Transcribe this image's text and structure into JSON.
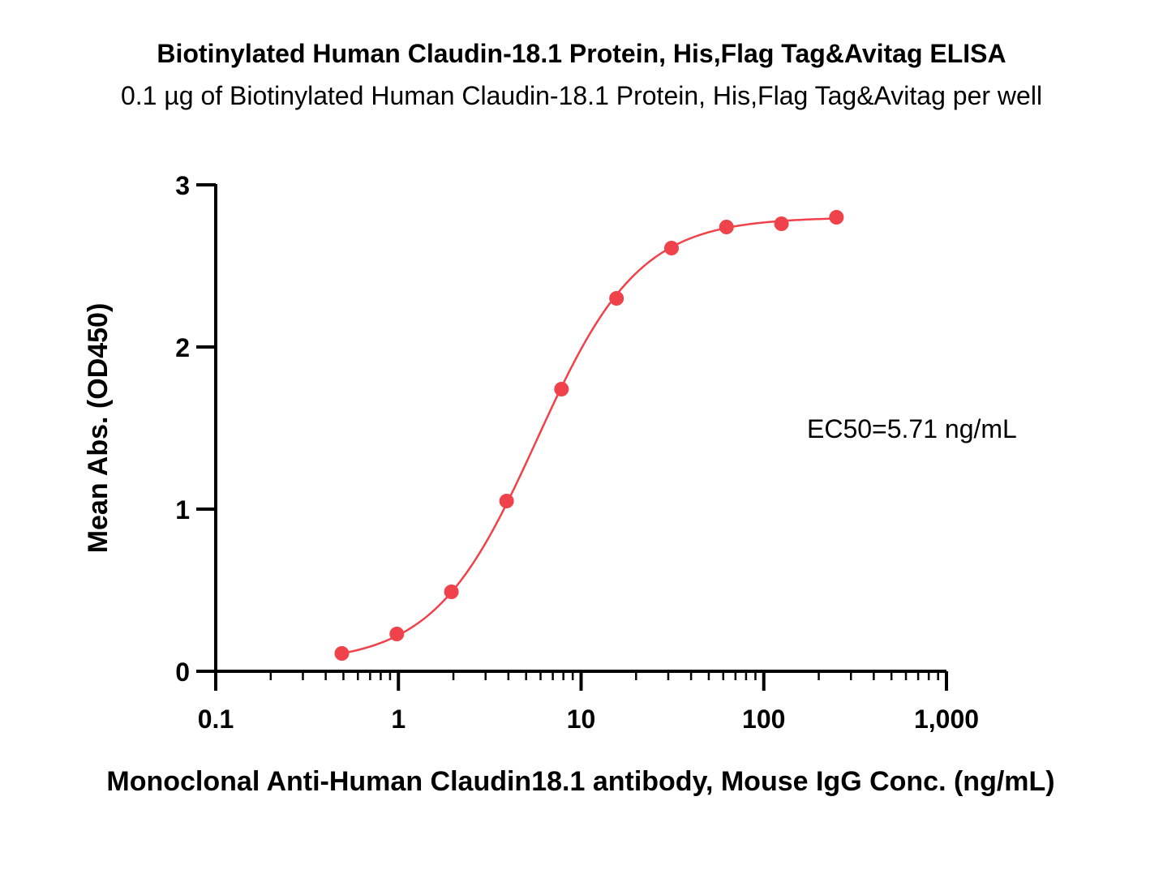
{
  "chart_data": {
    "type": "scatter",
    "title": "Biotinylated Human Claudin-18.1 Protein, His,Flag Tag&Avitag ELISA",
    "subtitle": "0.1 µg of Biotinylated Human Claudin-18.1 Protein, His,Flag Tag&Avitag per well",
    "xlabel": "Monoclonal Anti-Human Claudin18.1 antibody, Mouse IgG Conc. (ng/mL)",
    "ylabel": "Mean Abs. (OD450)",
    "x_scale": "log",
    "xlim": [
      0.1,
      1000
    ],
    "ylim": [
      0,
      3
    ],
    "x_ticks": [
      0.1,
      1,
      10,
      100,
      1000
    ],
    "x_tick_labels": [
      "0.1",
      "1",
      "10",
      "100",
      "1,000"
    ],
    "y_ticks": [
      0,
      1,
      2,
      3
    ],
    "y_tick_labels": [
      "0",
      "1",
      "2",
      "3"
    ],
    "grid": false,
    "series": [
      {
        "color": "#f0424a",
        "x": [
          0.49,
          0.98,
          1.95,
          3.91,
          7.81,
          15.63,
          31.25,
          62.5,
          125,
          250
        ],
        "y": [
          0.11,
          0.23,
          0.49,
          1.05,
          1.74,
          2.3,
          2.61,
          2.74,
          2.76,
          2.8
        ]
      }
    ],
    "fit": {
      "type": "4PL",
      "bottom": 0.05,
      "top": 2.8,
      "ec50": 5.71,
      "hill": 1.55
    },
    "annotation": "EC50=5.71 ng/mL"
  }
}
